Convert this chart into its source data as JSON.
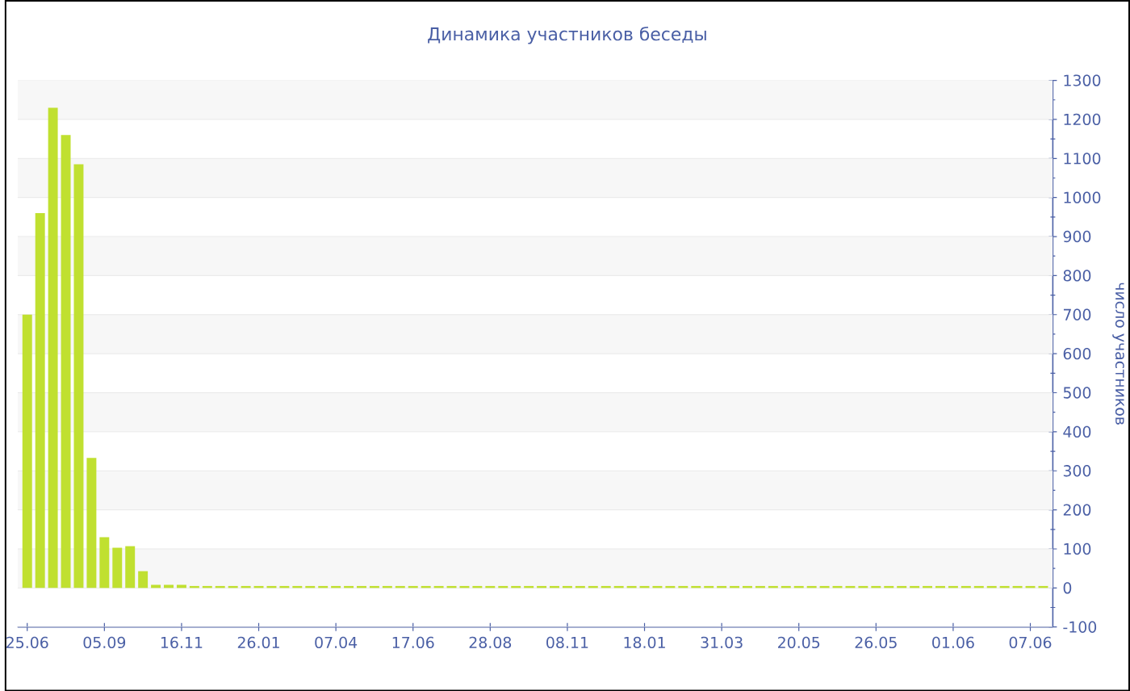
{
  "chart_data": {
    "type": "bar",
    "title": "Динамика участников беседы",
    "ylabel": "число участников",
    "categories": [
      "25.06",
      null,
      null,
      null,
      null,
      null,
      "05.09",
      null,
      null,
      null,
      null,
      null,
      "16.11",
      null,
      null,
      null,
      null,
      null,
      "26.01",
      null,
      null,
      null,
      null,
      null,
      "07.04",
      null,
      null,
      null,
      null,
      null,
      "17.06",
      null,
      null,
      null,
      null,
      null,
      "28.08",
      null,
      null,
      null,
      null,
      null,
      "08.11",
      null,
      null,
      null,
      null,
      null,
      "18.01",
      null,
      null,
      null,
      null,
      null,
      "31.03",
      null,
      null,
      null,
      null,
      null,
      "20.05",
      null,
      null,
      null,
      null,
      null,
      "26.05",
      null,
      null,
      null,
      null,
      null,
      "01.06",
      null,
      null,
      null,
      null,
      null,
      "07.06",
      null
    ],
    "values": [
      700,
      960,
      1230,
      1160,
      1085,
      333,
      130,
      103,
      107,
      43,
      8,
      8,
      8,
      5,
      5,
      5,
      5,
      5,
      5,
      5,
      5,
      5,
      5,
      5,
      5,
      5,
      5,
      5,
      5,
      5,
      5,
      5,
      5,
      5,
      5,
      5,
      5,
      5,
      5,
      5,
      5,
      5,
      5,
      5,
      5,
      5,
      5,
      5,
      5,
      5,
      5,
      5,
      5,
      5,
      5,
      5,
      5,
      5,
      5,
      5,
      5,
      5,
      5,
      5,
      5,
      5,
      5,
      5,
      5,
      5,
      5,
      5,
      5,
      5,
      5,
      5,
      5,
      5,
      5,
      5
    ],
    "color": "#c0e030",
    "ylim": [
      -100,
      1300
    ],
    "yticks": [
      -100,
      0,
      100,
      200,
      300,
      400,
      500,
      600,
      700,
      800,
      900,
      1000,
      1100,
      1200,
      1300
    ],
    "grid": "y"
  }
}
